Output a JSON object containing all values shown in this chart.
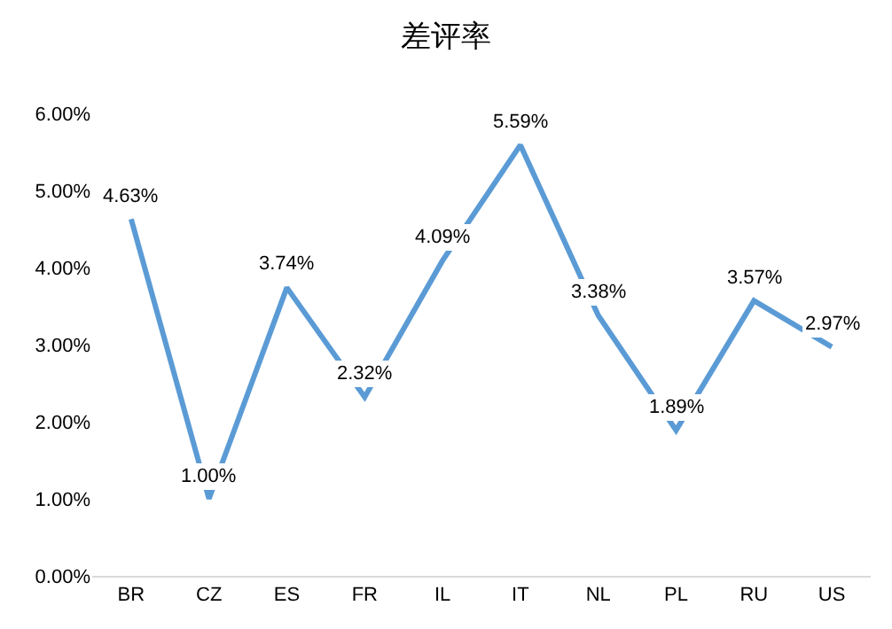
{
  "chart_data": {
    "type": "line",
    "title": "差评率",
    "categories": [
      "BR",
      "CZ",
      "ES",
      "FR",
      "IL",
      "IT",
      "NL",
      "PL",
      "RU",
      "US"
    ],
    "series": [
      {
        "color": "#5b9bd5",
        "values": [
          4.63,
          1.0,
          3.74,
          2.32,
          4.09,
          5.59,
          3.38,
          1.89,
          3.57,
          2.97
        ],
        "value_labels": [
          "4.63%",
          "1.00%",
          "3.74%",
          "2.32%",
          "4.09%",
          "5.59%",
          "3.38%",
          "1.89%",
          "3.57%",
          "2.97%"
        ]
      }
    ],
    "ylim": [
      0,
      6
    ],
    "yticks": [
      {
        "value": 0,
        "label": "0.00%"
      },
      {
        "value": 1,
        "label": "1.00%"
      },
      {
        "value": 2,
        "label": "2.00%"
      },
      {
        "value": 3,
        "label": "3.00%"
      },
      {
        "value": 4,
        "label": "4.00%"
      },
      {
        "value": 5,
        "label": "5.00%"
      },
      {
        "value": 6,
        "label": "6.00%"
      }
    ],
    "grid": false,
    "marker": "none",
    "line_style": "solid"
  }
}
